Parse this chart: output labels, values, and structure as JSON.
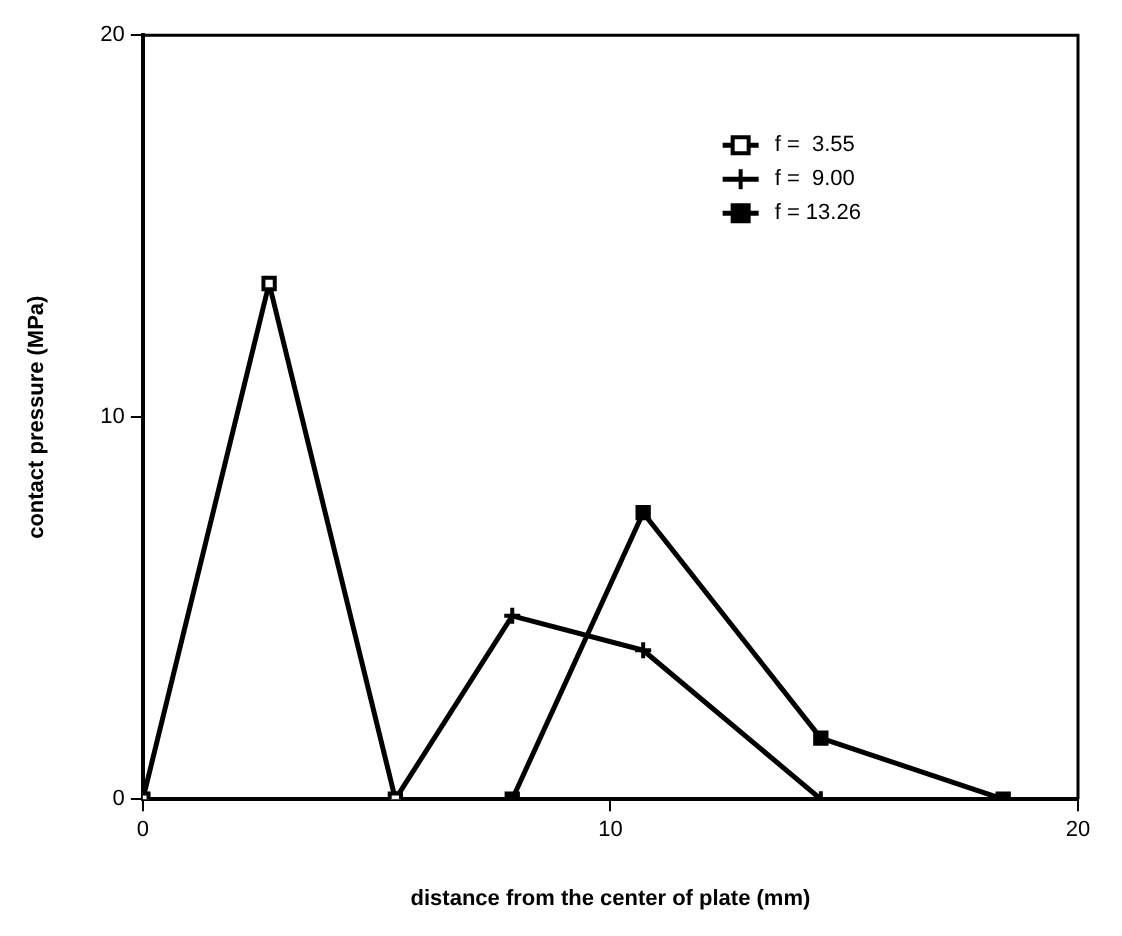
{
  "chart_data": {
    "type": "line",
    "xlabel": "distance from the center of plate (mm)",
    "ylabel": "contact pressure (MPa)",
    "xlim": [
      0,
      20
    ],
    "ylim": [
      0,
      20
    ],
    "xticks": [
      0,
      10,
      20
    ],
    "yticks": [
      0,
      10,
      20
    ],
    "grid": false,
    "legend": "top right",
    "line_style": "solid",
    "series": [
      {
        "name": "f =  3.55",
        "color": "#000000",
        "marker": "square_open",
        "x": [
          0,
          2.7,
          5.4
        ],
        "values": [
          0,
          13.5,
          0
        ]
      },
      {
        "name": "f =  9.00",
        "color": "#000000",
        "marker": "cross",
        "x": [
          5.4,
          7.9,
          10.7,
          14.5
        ],
        "values": [
          0,
          4.8,
          3.9,
          0
        ]
      },
      {
        "name": "f = 13.26",
        "color": "#000000",
        "marker": "square",
        "x": [
          7.9,
          10.7,
          14.5,
          18.4
        ],
        "values": [
          0,
          7.5,
          1.6,
          0
        ]
      }
    ]
  }
}
